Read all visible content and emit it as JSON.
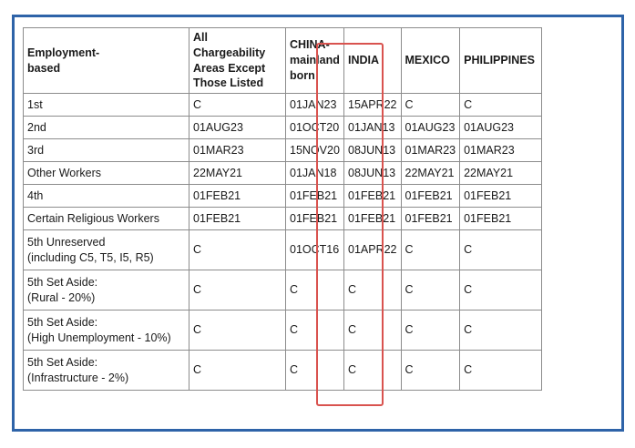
{
  "table": {
    "headers": [
      "Employment-\nbased",
      "All Chargeability\nAreas Except\nThose Listed",
      "CHINA-\nmainland\nborn",
      "INDIA",
      "MEXICO",
      "PHILIPPINES"
    ],
    "rows": [
      [
        "1st",
        "C",
        "01JAN23",
        "15APR22",
        "C",
        "C"
      ],
      [
        "2nd",
        "01AUG23",
        "01OCT20",
        "01JAN13",
        "01AUG23",
        "01AUG23"
      ],
      [
        "3rd",
        "01MAR23",
        "15NOV20",
        "08JUN13",
        "01MAR23",
        "01MAR23"
      ],
      [
        "Other Workers",
        "22MAY21",
        "01JAN18",
        "08JUN13",
        "22MAY21",
        "22MAY21"
      ],
      [
        "4th",
        "01FEB21",
        "01FEB21",
        "01FEB21",
        "01FEB21",
        "01FEB21"
      ],
      [
        "Certain Religious Workers",
        "01FEB21",
        "01FEB21",
        "01FEB21",
        "01FEB21",
        "01FEB21"
      ],
      [
        "5th Unreserved\n(including C5, T5, I5, R5)",
        "C",
        "01OCT16",
        "01APR22",
        "C",
        "C"
      ],
      [
        "5th Set Aside:\n(Rural - 20%)",
        "C",
        "C",
        "C",
        "C",
        "C"
      ],
      [
        "5th Set Aside:\n(High Unemployment - 10%)",
        "C",
        "C",
        "C",
        "C",
        "C"
      ],
      [
        "5th Set Aside:\n(Infrastructure - 2%)",
        "C",
        "C",
        "C",
        "C",
        "C"
      ]
    ],
    "highlight_color": "#d9534f",
    "frame_color": "#2e63a8"
  }
}
